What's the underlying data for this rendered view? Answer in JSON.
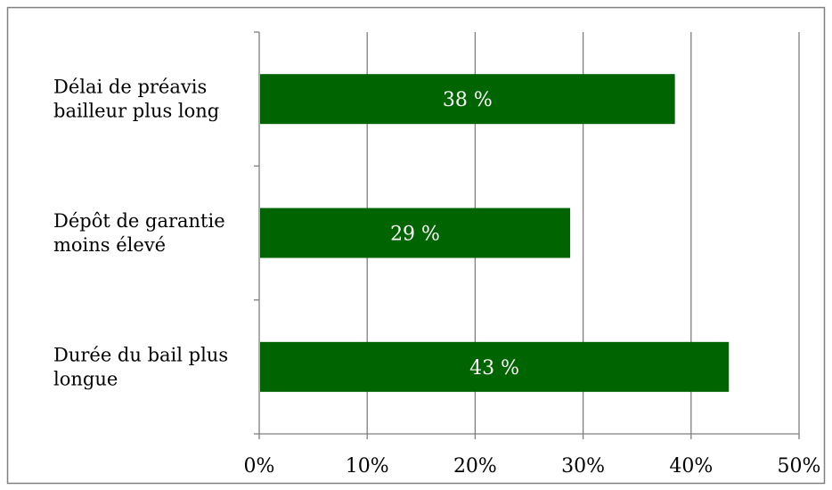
{
  "chart_data": {
    "type": "bar",
    "orientation": "horizontal",
    "categories": [
      [
        "Délai de préavis",
        "bailleur plus long"
      ],
      [
        "Dépôt de garantie",
        "moins élevé"
      ],
      [
        "Durée du bail plus",
        "longue"
      ]
    ],
    "values": [
      38.5,
      28.8,
      43.5
    ],
    "data_labels": [
      "38 %",
      "29 %",
      "43 %"
    ],
    "xlim": [
      0,
      50
    ],
    "x_ticks": [
      0,
      10,
      20,
      30,
      40,
      50
    ],
    "x_tick_labels": [
      "0%",
      "10%",
      "20%",
      "30%",
      "40%",
      "50%"
    ],
    "grid": "vertical",
    "legend": "none",
    "title": "",
    "xlabel": "",
    "ylabel": ""
  },
  "colors": {
    "bar": "#006400",
    "grid": "#7f7f7f",
    "axis": "#7f7f7f",
    "frame": "#808080",
    "bar_label": "#ffffff"
  }
}
